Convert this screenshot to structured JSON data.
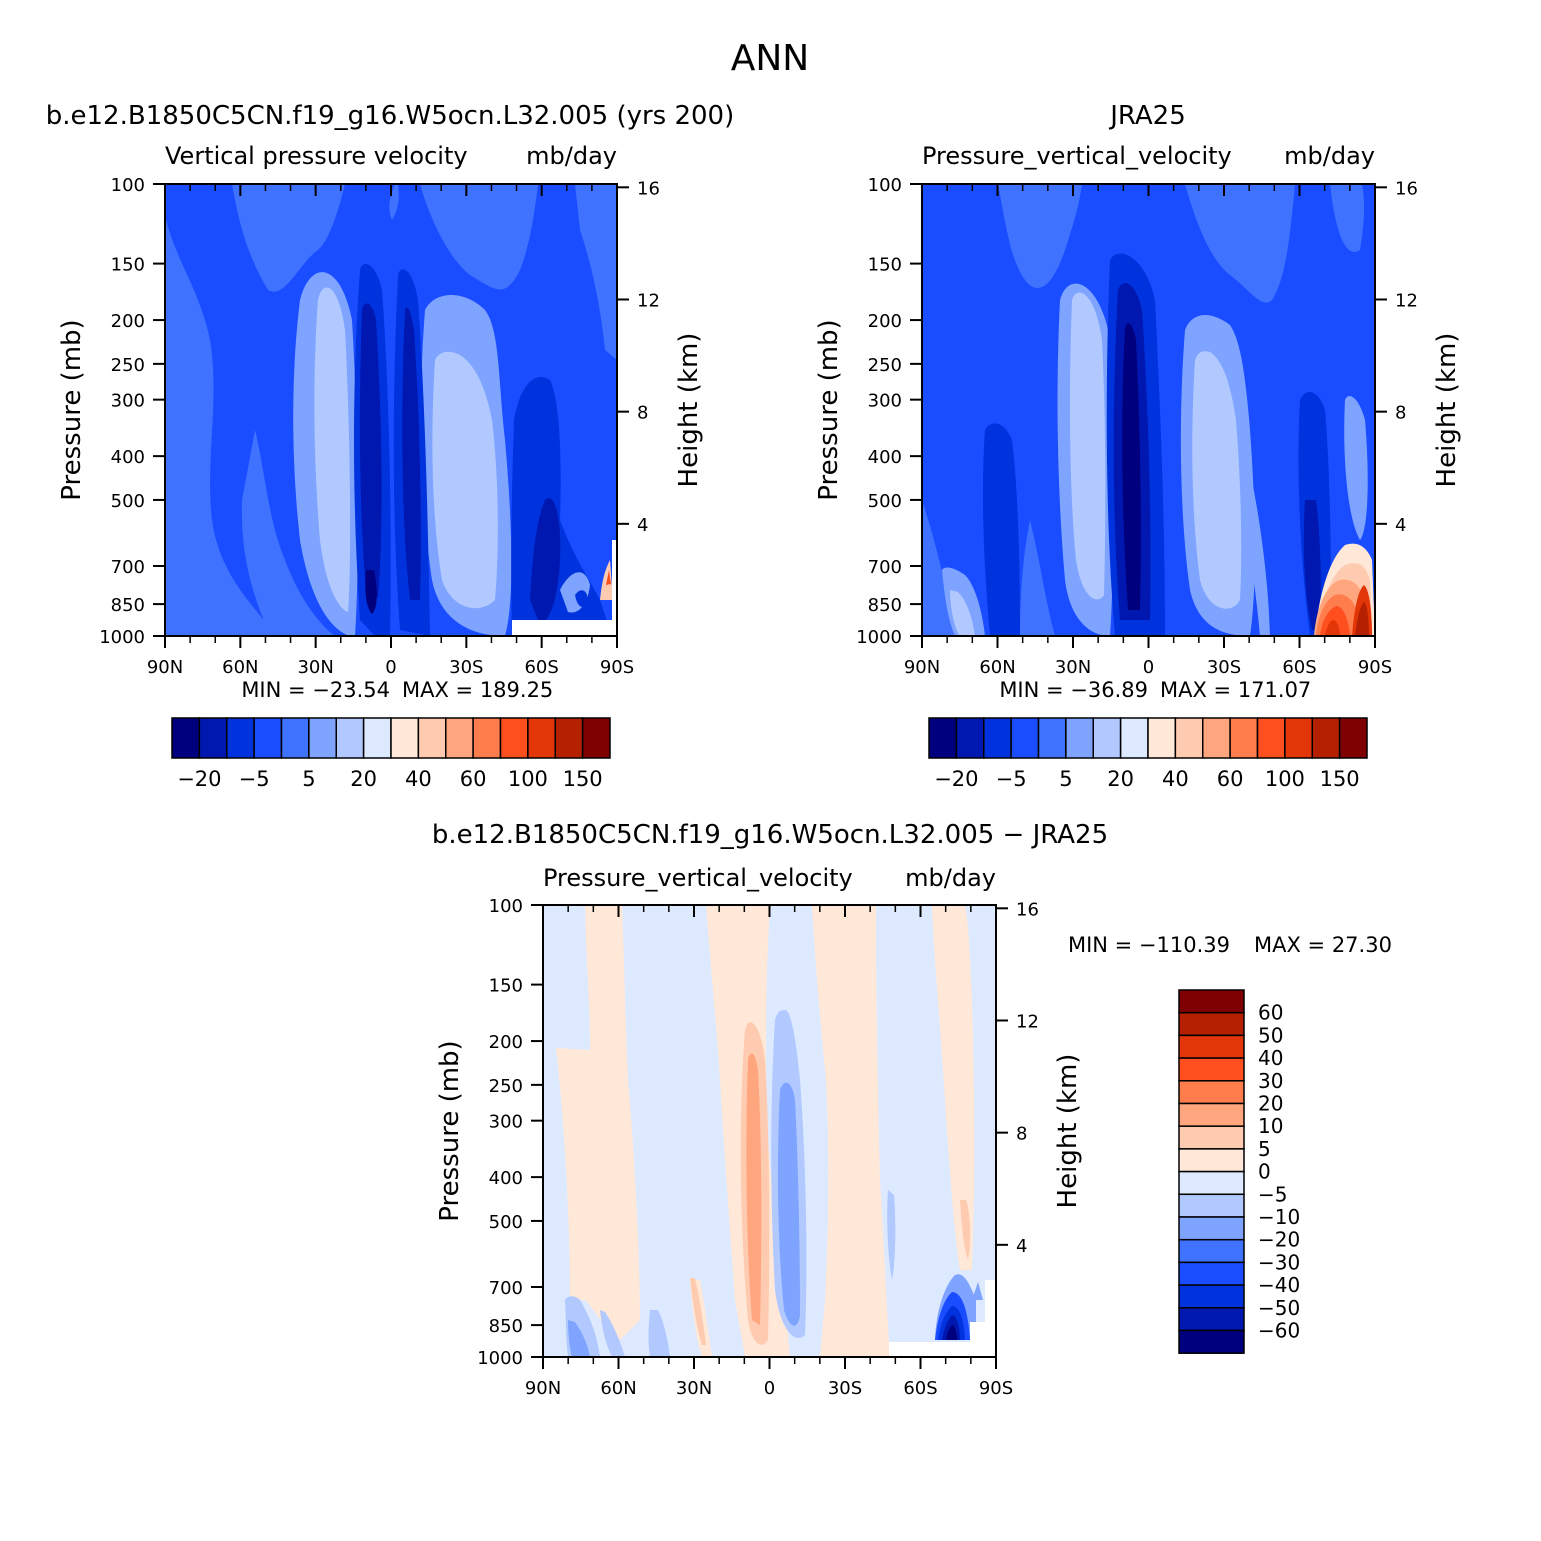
{
  "page": {
    "title": "ANN"
  },
  "chart_data": [
    {
      "type": "heatmap",
      "title": "b.e12.B1850C5CN.f19_g16.W5ocn.L32.005 (yrs 200)",
      "subtitle_left": "Vertical pressure velocity",
      "subtitle_right": "mb/day",
      "xlabel": "",
      "ylabel": "Pressure (mb)",
      "ylabel_right": "Height (km)",
      "x_ticks": [
        "90N",
        "60N",
        "30N",
        "0",
        "30S",
        "60S",
        "90S"
      ],
      "x_values": [
        90,
        60,
        30,
        0,
        -30,
        -60,
        -90
      ],
      "y_ticks": [
        100,
        150,
        200,
        250,
        300,
        400,
        500,
        700,
        850,
        1000
      ],
      "y_scale": "log",
      "ylim": [
        1000,
        100
      ],
      "height_ticks_km": [
        4,
        8,
        12,
        16
      ],
      "min_label": "MIN = −23.54",
      "max_label": "MAX = 189.25",
      "min": -23.54,
      "max": 189.25,
      "colorbar_labels": [
        "−20",
        "−5",
        "5",
        "20",
        "40",
        "60",
        "100",
        "150"
      ],
      "colorbar_orientation": "horizontal"
    },
    {
      "type": "heatmap",
      "title": "JRA25",
      "subtitle_left": "Pressure_vertical_velocity",
      "subtitle_right": "mb/day",
      "xlabel": "",
      "ylabel": "Pressure (mb)",
      "ylabel_right": "Height (km)",
      "x_ticks": [
        "90N",
        "60N",
        "30N",
        "0",
        "30S",
        "60S",
        "90S"
      ],
      "x_values": [
        90,
        60,
        30,
        0,
        -30,
        -60,
        -90
      ],
      "y_ticks": [
        100,
        150,
        200,
        250,
        300,
        400,
        500,
        700,
        850,
        1000
      ],
      "y_scale": "log",
      "ylim": [
        1000,
        100
      ],
      "height_ticks_km": [
        4,
        8,
        12,
        16
      ],
      "min_label": "MIN = −36.89",
      "max_label": "MAX = 171.07",
      "min": -36.89,
      "max": 171.07,
      "colorbar_labels": [
        "−20",
        "−5",
        "5",
        "20",
        "40",
        "60",
        "100",
        "150"
      ],
      "colorbar_orientation": "horizontal"
    },
    {
      "type": "heatmap",
      "title": "b.e12.B1850C5CN.f19_g16.W5ocn.L32.005 − JRA25",
      "subtitle_left": "Pressure_vertical_velocity",
      "subtitle_right": "mb/day",
      "xlabel": "",
      "ylabel": "Pressure (mb)",
      "ylabel_right": "Height (km)",
      "x_ticks": [
        "90N",
        "60N",
        "30N",
        "0",
        "30S",
        "60S",
        "90S"
      ],
      "x_values": [
        90,
        60,
        30,
        0,
        -30,
        -60,
        -90
      ],
      "y_ticks": [
        100,
        150,
        200,
        250,
        300,
        400,
        500,
        700,
        850,
        1000
      ],
      "y_scale": "log",
      "ylim": [
        1000,
        100
      ],
      "height_ticks_km": [
        4,
        8,
        12,
        16
      ],
      "min_label": "MIN = −110.39",
      "max_label": "MAX =   27.30",
      "min": -110.39,
      "max": 27.3,
      "colorbar_labels": [
        "60",
        "50",
        "40",
        "30",
        "20",
        "10",
        "5",
        "0",
        "−5",
        "−10",
        "−20",
        "−30",
        "−40",
        "−50",
        "−60"
      ],
      "colorbar_orientation": "vertical"
    }
  ],
  "colors": {
    "abs_scale": [
      "#00007f",
      "#0018b0",
      "#0033dd",
      "#1a4dff",
      "#3f72ff",
      "#7ea4ff",
      "#b1c9ff",
      "#dce9ff",
      "#ffe8d8",
      "#ffcbb0",
      "#ffa67e",
      "#ff7c4d",
      "#ff4f1f",
      "#e23508",
      "#b52100",
      "#7f0000"
    ],
    "diff_scale": [
      "#7f0000",
      "#b52100",
      "#e23508",
      "#ff4f1f",
      "#ff7c4d",
      "#ffa67e",
      "#ffcbb0",
      "#ffe8d8",
      "#dce9ff",
      "#b1c9ff",
      "#7ea4ff",
      "#3f72ff",
      "#1a4dff",
      "#0033dd",
      "#0018b0",
      "#00007f"
    ]
  }
}
